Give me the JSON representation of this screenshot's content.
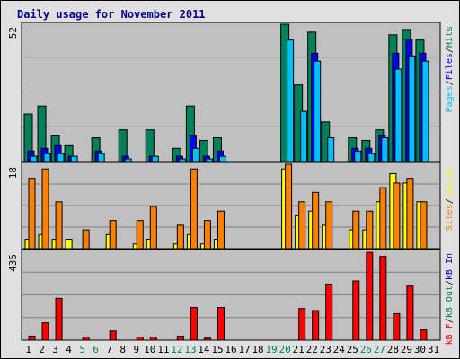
{
  "page": {
    "background": "#e0e0e0",
    "panel_color": "#c0c0c0",
    "title_color": "#00008b"
  },
  "chart_data": {
    "title": "Daily usage for November 2011",
    "type": "bar",
    "days": [
      1,
      2,
      3,
      4,
      5,
      6,
      7,
      8,
      9,
      10,
      11,
      12,
      13,
      14,
      15,
      16,
      17,
      18,
      19,
      20,
      21,
      22,
      23,
      24,
      25,
      26,
      27,
      28,
      29,
      30,
      31
    ],
    "weekend_days": [
      5,
      6,
      12,
      13,
      19,
      20,
      26,
      27
    ],
    "weekend_color": "#00805c",
    "weekday_color": "#000000",
    "colors": {
      "hits": "#00805c",
      "files": "#0000ff",
      "pages": "#00c0ff",
      "visits": "#ffff00",
      "sites": "#ff8000",
      "kbin": "#0000c0",
      "kbout": "#008040",
      "kbf": "#ff0000"
    },
    "panels": [
      {
        "id": "hits",
        "ymax_label": "52",
        "ymax": 52,
        "legend": [
          {
            "text": "Pages",
            "color": "#00c0ff"
          },
          {
            "text": "/",
            "color": "#000000"
          },
          {
            "text": "Files",
            "color": "#0000ff"
          },
          {
            "text": "/",
            "color": "#000000"
          },
          {
            "text": "Hits",
            "color": "#00805c"
          }
        ],
        "series": [
          {
            "name": "Hits",
            "values": [
              18,
              21,
              10,
              6,
              0,
              9,
              0,
              12,
              0,
              12,
              0,
              5,
              21,
              8,
              9,
              0,
              0,
              0,
              0,
              52,
              29,
              49,
              15,
              0,
              9,
              8,
              12,
              48,
              50,
              46,
              0
            ]
          },
          {
            "name": "Files",
            "values": [
              4,
              5,
              6,
              2,
              0,
              4,
              0,
              2,
              0,
              2,
              0,
              2,
              10,
              2,
              4,
              0,
              0,
              0,
              0,
              0,
              0,
              41,
              0,
              0,
              5,
              5,
              10,
              41,
              46,
              41,
              0
            ]
          },
          {
            "name": "Pages",
            "values": [
              2,
              3,
              3,
              2,
              0,
              3,
              0,
              1,
              0,
              2,
              0,
              1,
              5,
              1,
              2,
              0,
              0,
              0,
              0,
              46,
              19,
              38,
              9,
              0,
              4,
              3,
              9,
              35,
              40,
              38,
              0
            ]
          }
        ]
      },
      {
        "id": "sites",
        "ymax_label": "18",
        "ymax": 18,
        "legend": [
          {
            "text": "Sites",
            "color": "#ff8000"
          },
          {
            "text": "/",
            "color": "#000000"
          },
          {
            "text": "Visits",
            "color": "#ffff00"
          }
        ],
        "series": [
          {
            "name": "Visits",
            "values": [
              2,
              3,
              2,
              2,
              0,
              0,
              3,
              0,
              1,
              2,
              0,
              1,
              3,
              1,
              2,
              0,
              0,
              0,
              0,
              17,
              7,
              8,
              5,
              0,
              4,
              4,
              10,
              16,
              14,
              10,
              0
            ]
          },
          {
            "name": "Sites",
            "values": [
              15,
              17,
              10,
              0,
              4,
              0,
              6,
              0,
              6,
              9,
              0,
              5,
              17,
              6,
              8,
              0,
              0,
              0,
              0,
              18,
              10,
              12,
              10,
              0,
              8,
              8,
              13,
              14,
              15,
              10,
              0
            ]
          }
        ]
      },
      {
        "id": "kbytes",
        "ymax_label": "435",
        "ymax": 435,
        "legend": [
          {
            "text": "kB F",
            "color": "#ff0000"
          },
          {
            "text": "/",
            "color": "#000000"
          },
          {
            "text": "kB Out",
            "color": "#008040"
          },
          {
            "text": "/",
            "color": "#000000"
          },
          {
            "text": "kB In",
            "color": "#0000c0"
          }
        ],
        "series": [
          {
            "name": "kB F",
            "values": [
              20,
              85,
              205,
              0,
              15,
              0,
              45,
              0,
              15,
              15,
              0,
              20,
              160,
              10,
              160,
              0,
              0,
              0,
              0,
              0,
              155,
              145,
              275,
              0,
              290,
              430,
              410,
              130,
              265,
              50,
              0
            ]
          }
        ]
      }
    ]
  }
}
